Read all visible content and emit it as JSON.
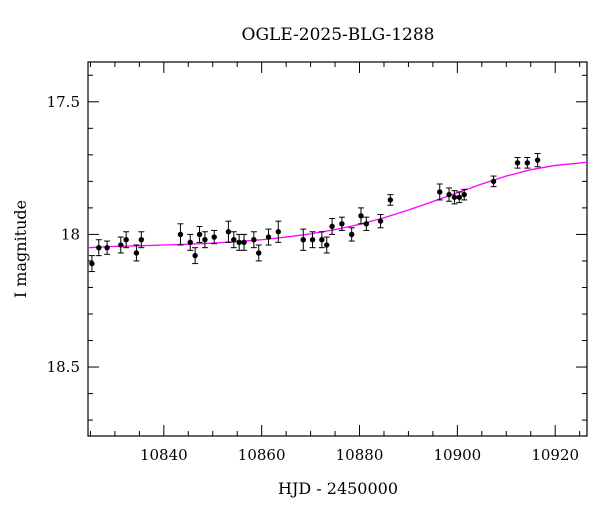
{
  "chart_data": {
    "type": "scatter",
    "title": "OGLE-2025-BLG-1288",
    "xlabel": "HJD - 2450000",
    "ylabel": "I magnitude",
    "xlim": [
      10824.5,
      10926.5
    ],
    "ylim": [
      18.76,
      17.35
    ],
    "y_inverted": true,
    "grid": false,
    "x_ticks": [
      10840,
      10860,
      10880,
      10900,
      10920
    ],
    "x_tick_labels": [
      "10840",
      "10860",
      "10880",
      "10900",
      "10920"
    ],
    "y_ticks": [
      17.5,
      18,
      18.5
    ],
    "y_tick_labels": [
      "17.5",
      "18",
      "18.5"
    ],
    "colors": {
      "points": "#000000",
      "model": "#ff00ff"
    },
    "series": [
      {
        "type": "scatter-errorbar",
        "x": [
          10825.3,
          10826.7,
          10828.4,
          10831.2,
          10832.3,
          10834.4,
          10835.4,
          10843.4,
          10845.4,
          10846.4,
          10847.3,
          10848.4,
          10850.3,
          10853.2,
          10854.3,
          10855.4,
          10856.4,
          10858.4,
          10859.4,
          10861.4,
          10863.4,
          10868.5,
          10870.4,
          10872.3,
          10873.3,
          10874.4,
          10876.4,
          10878.4,
          10880.3,
          10881.4,
          10884.3,
          10886.3,
          10896.4,
          10898.3,
          10899.4,
          10900.4,
          10901.4,
          10907.4,
          10912.3,
          10914.3,
          10916.4
        ],
        "y": [
          18.11,
          18.05,
          18.05,
          18.04,
          18.02,
          18.07,
          18.02,
          18.0,
          18.03,
          18.08,
          18.0,
          18.02,
          18.01,
          17.99,
          18.02,
          18.03,
          18.03,
          18.02,
          18.07,
          18.01,
          17.99,
          18.02,
          18.02,
          18.02,
          18.04,
          17.97,
          17.96,
          18.0,
          17.93,
          17.96,
          17.95,
          17.87,
          17.84,
          17.85,
          17.86,
          17.86,
          17.85,
          17.8,
          17.73,
          17.73,
          17.72
        ],
        "err": [
          0.03,
          0.03,
          0.025,
          0.03,
          0.03,
          0.03,
          0.03,
          0.04,
          0.03,
          0.03,
          0.03,
          0.03,
          0.025,
          0.04,
          0.03,
          0.03,
          0.03,
          0.03,
          0.03,
          0.03,
          0.04,
          0.04,
          0.03,
          0.03,
          0.03,
          0.03,
          0.025,
          0.025,
          0.03,
          0.025,
          0.025,
          0.02,
          0.03,
          0.025,
          0.025,
          0.02,
          0.02,
          0.02,
          0.02,
          0.02,
          0.025
        ]
      },
      {
        "type": "line",
        "x": [
          10824.5,
          10830,
          10835,
          10840,
          10845,
          10850,
          10855,
          10860,
          10865,
          10870,
          10875,
          10880,
          10885,
          10890,
          10895,
          10900,
          10905,
          10910,
          10915,
          10920,
          10926.5
        ],
        "y": [
          18.05,
          18.045,
          18.043,
          18.04,
          18.037,
          18.033,
          18.027,
          18.02,
          18.01,
          17.998,
          17.982,
          17.962,
          17.937,
          17.908,
          17.876,
          17.843,
          17.81,
          17.78,
          17.756,
          17.74,
          17.728
        ]
      }
    ]
  }
}
